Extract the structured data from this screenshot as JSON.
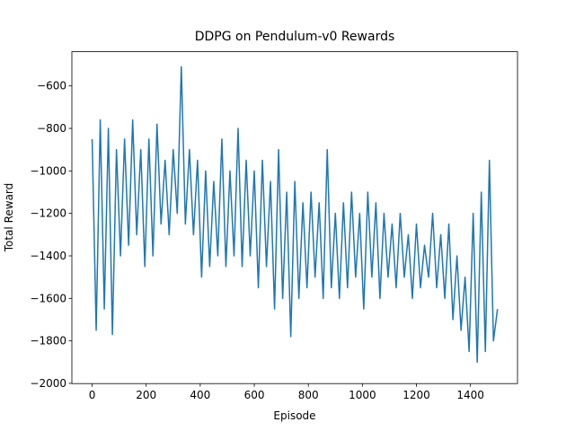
{
  "chart_data": {
    "type": "line",
    "title": "DDPG on Pendulum-v0 Rewards",
    "x_label": "Episode",
    "y_label": "Total Reward",
    "x": [
      0,
      15,
      30,
      45,
      60,
      75,
      90,
      105,
      120,
      135,
      150,
      165,
      180,
      195,
      210,
      225,
      240,
      255,
      270,
      285,
      300,
      315,
      330,
      345,
      360,
      375,
      390,
      405,
      420,
      435,
      450,
      465,
      480,
      495,
      510,
      525,
      540,
      555,
      570,
      585,
      600,
      615,
      630,
      645,
      660,
      675,
      690,
      705,
      720,
      735,
      750,
      765,
      780,
      795,
      810,
      825,
      840,
      855,
      870,
      885,
      900,
      915,
      930,
      945,
      960,
      975,
      990,
      1005,
      1020,
      1035,
      1050,
      1065,
      1080,
      1095,
      1110,
      1125,
      1140,
      1155,
      1170,
      1185,
      1200,
      1215,
      1230,
      1245,
      1260,
      1275,
      1290,
      1305,
      1320,
      1335,
      1350,
      1365,
      1380,
      1395,
      1410,
      1425,
      1440,
      1455,
      1470,
      1485,
      1500
    ],
    "series": [
      {
        "color": "#1f77b4",
        "values": [
          -850,
          -1750,
          -760,
          -1650,
          -800,
          -1770,
          -900,
          -1400,
          -850,
          -1350,
          -760,
          -1300,
          -900,
          -1450,
          -850,
          -1400,
          -780,
          -1250,
          -950,
          -1300,
          -900,
          -1200,
          -510,
          -1250,
          -900,
          -1300,
          -950,
          -1500,
          -1000,
          -1450,
          -1050,
          -1400,
          -850,
          -1450,
          -1000,
          -1400,
          -800,
          -1450,
          -950,
          -1400,
          -1000,
          -1550,
          -950,
          -1450,
          -1050,
          -1650,
          -900,
          -1600,
          -1100,
          -1780,
          -1050,
          -1600,
          -1150,
          -1550,
          -1100,
          -1500,
          -1150,
          -1600,
          -900,
          -1550,
          -1200,
          -1600,
          -1150,
          -1550,
          -1100,
          -1500,
          -1200,
          -1650,
          -1100,
          -1500,
          -1150,
          -1600,
          -1200,
          -1500,
          -1250,
          -1550,
          -1200,
          -1500,
          -1300,
          -1600,
          -1250,
          -1550,
          -1350,
          -1500,
          -1200,
          -1550,
          -1300,
          -1600,
          -1250,
          -1700,
          -1400,
          -1750,
          -1500,
          -1850,
          -1200,
          -1900,
          -1100,
          -1850,
          -950,
          -1800,
          -1650
        ]
      }
    ],
    "xlim": [
      -75,
      1574
    ],
    "ylim": [
      -2001,
      -439
    ],
    "xticks": [
      0,
      200,
      400,
      600,
      800,
      1000,
      1200,
      1400
    ],
    "yticks": [
      {
        "value": -2000,
        "label": "−2000"
      },
      {
        "value": -1800,
        "label": "−1800"
      },
      {
        "value": -1600,
        "label": "−1600"
      },
      {
        "value": -1400,
        "label": "−1400"
      },
      {
        "value": -1200,
        "label": "−1200"
      },
      {
        "value": -1000,
        "label": "−1000"
      },
      {
        "value": -800,
        "label": "−800"
      },
      {
        "value": -600,
        "label": "−600"
      }
    ]
  }
}
